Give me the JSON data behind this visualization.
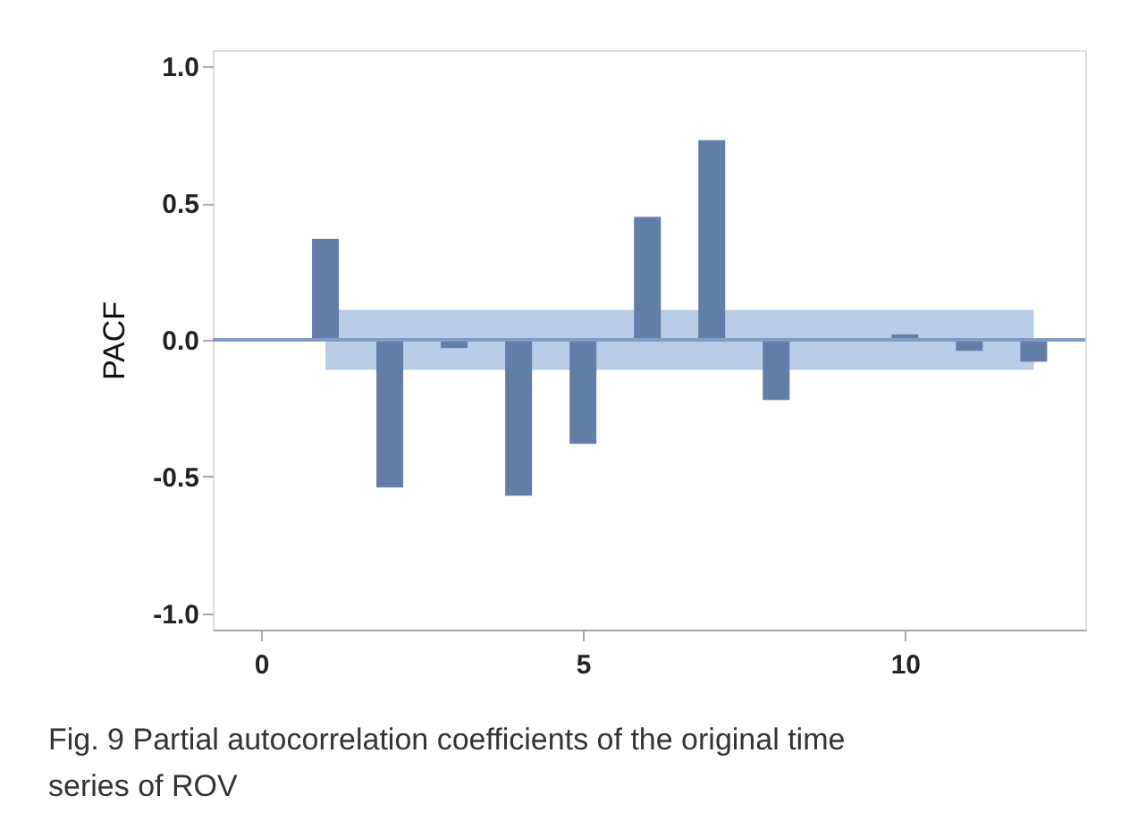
{
  "chart_data": {
    "type": "bar",
    "ylabel": "PACF",
    "x": [
      1,
      2,
      3,
      4,
      5,
      6,
      7,
      8,
      9,
      10,
      11,
      12
    ],
    "values": [
      0.37,
      -0.54,
      -0.03,
      -0.57,
      -0.38,
      0.45,
      0.73,
      -0.22,
      -0.005,
      0.02,
      -0.04,
      -0.08
    ],
    "color": "#627ea6",
    "xlim": [
      -0.75,
      12.8
    ],
    "xticks": [
      0,
      5,
      10
    ],
    "ylim": [
      -1.06,
      1.06
    ],
    "yticks": [
      {
        "value": -1,
        "label": "-1.0"
      },
      {
        "value": -0.5,
        "label": "-0.5"
      },
      {
        "value": 0,
        "label": "0.0"
      },
      {
        "value": 0.5,
        "label": "0.5"
      },
      {
        "value": 1,
        "label": "1.0"
      }
    ],
    "bands": [
      {
        "axis": "y",
        "from": -0.11,
        "to": 0.11,
        "color": "#b8cde6"
      }
    ],
    "ref_lines": [
      {
        "axis": "y",
        "value": 0,
        "color": "#7f9cc5"
      }
    ],
    "grid": false,
    "annotations": [
      "Fig. 9 Partial autocorrelation coefficients of the original time series of ROV"
    ]
  }
}
